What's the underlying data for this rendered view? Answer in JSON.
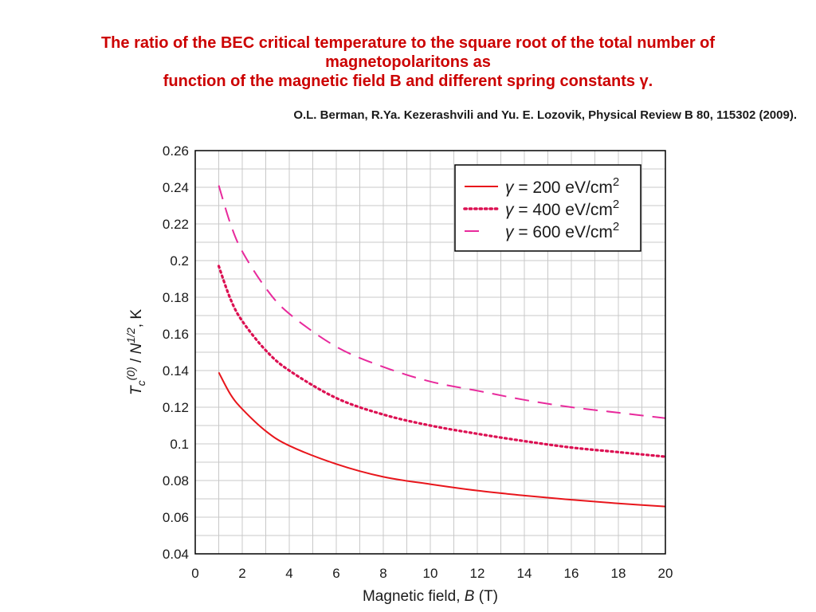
{
  "header": {
    "title_lines": [
      "The ratio of the BEC critical temperature to the square root of the total number of",
      "magnetopolaritons as",
      "function of the magnetic field B and different spring constants γ."
    ],
    "citation": "O.L. Berman, R.Ya. Kezerashvili and Yu. E. Lozovik, Physical Review B 80, 115302 (2009)."
  },
  "chart_data": {
    "type": "line",
    "xlabel": {
      "prefix": "Magnetic field, ",
      "var": "B",
      "unit": " (T)"
    },
    "ylabel": {
      "t": "T",
      "c": "c",
      "sup0": "(0)",
      "slash": " / ",
      "n": "N",
      "sup12": "1/2",
      "unit": ",  K"
    },
    "xlim": [
      0,
      20
    ],
    "ylim": [
      0.04,
      0.26
    ],
    "xticks": [
      0,
      2,
      4,
      6,
      8,
      10,
      12,
      14,
      16,
      18,
      20
    ],
    "yticks": [
      0.04,
      0.06,
      0.08,
      0.1,
      0.12,
      0.14,
      0.16,
      0.18,
      0.2,
      0.22,
      0.24,
      0.26
    ],
    "ytick_labels": [
      "0.04",
      "0.06",
      "0.08",
      "0.1",
      "0.12",
      "0.14",
      "0.16",
      "0.18",
      "0.2",
      "0.22",
      "0.24",
      "0.26"
    ],
    "grid": true,
    "legend_position": "top-right",
    "series": [
      {
        "name": {
          "sym": "γ",
          "text": " = 200 eV/cm",
          "sup": "2"
        },
        "style": "solid",
        "color": "#e8161c",
        "x": [
          1,
          1.5,
          2,
          3,
          4,
          6,
          8,
          10,
          12,
          14,
          16,
          18,
          20
        ],
        "y": [
          0.139,
          0.127,
          0.119,
          0.107,
          0.099,
          0.089,
          0.082,
          0.078,
          0.0745,
          0.0718,
          0.0695,
          0.0675,
          0.0658
        ]
      },
      {
        "name": {
          "sym": "γ",
          "text": " = 400 eV/cm",
          "sup": "2"
        },
        "style": "dotted",
        "color": "#dc1052",
        "x": [
          1,
          1.5,
          2,
          3,
          4,
          6,
          8,
          10,
          12,
          14,
          16,
          18,
          20
        ],
        "y": [
          0.197,
          0.179,
          0.167,
          0.151,
          0.14,
          0.125,
          0.116,
          0.11,
          0.1055,
          0.1015,
          0.098,
          0.0955,
          0.093
        ]
      },
      {
        "name": {
          "sym": "γ",
          "text": " = 600 eV/cm",
          "sup": "2"
        },
        "style": "dashed",
        "color": "#e82a9c",
        "x": [
          1,
          1.5,
          2,
          3,
          4,
          6,
          8,
          10,
          12,
          14,
          16,
          18,
          20
        ],
        "y": [
          0.241,
          0.22,
          0.205,
          0.185,
          0.171,
          0.153,
          0.142,
          0.134,
          0.129,
          0.124,
          0.12,
          0.117,
          0.114
        ]
      }
    ]
  }
}
